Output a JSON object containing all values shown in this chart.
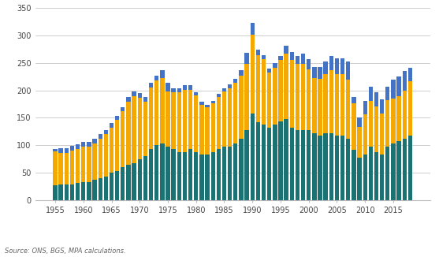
{
  "years": [
    1955,
    1956,
    1957,
    1958,
    1959,
    1960,
    1961,
    1962,
    1963,
    1964,
    1965,
    1966,
    1967,
    1968,
    1969,
    1970,
    1971,
    1972,
    1973,
    1974,
    1975,
    1976,
    1977,
    1978,
    1979,
    1980,
    1981,
    1982,
    1983,
    1984,
    1985,
    1986,
    1987,
    1988,
    1989,
    1990,
    1991,
    1992,
    1993,
    1994,
    1995,
    1996,
    1997,
    1998,
    1999,
    2000,
    2001,
    2002,
    2003,
    2004,
    2005,
    2006,
    2007,
    2008,
    2009,
    2010,
    2011,
    2012,
    2013,
    2014,
    2015,
    2016,
    2017,
    2018
  ],
  "crushed_rock": [
    27,
    29,
    29,
    29,
    32,
    33,
    34,
    37,
    40,
    44,
    50,
    54,
    60,
    65,
    68,
    75,
    80,
    93,
    100,
    104,
    98,
    93,
    88,
    88,
    93,
    88,
    84,
    84,
    88,
    93,
    98,
    98,
    103,
    112,
    128,
    158,
    142,
    138,
    132,
    138,
    143,
    148,
    132,
    128,
    128,
    128,
    122,
    118,
    122,
    122,
    118,
    118,
    112,
    92,
    78,
    83,
    98,
    88,
    83,
    98,
    103,
    108,
    112,
    118
  ],
  "sand_gravel": [
    62,
    58,
    58,
    62,
    62,
    65,
    64,
    67,
    72,
    76,
    82,
    92,
    102,
    115,
    122,
    112,
    100,
    112,
    118,
    118,
    100,
    103,
    108,
    113,
    108,
    103,
    90,
    85,
    88,
    95,
    100,
    105,
    110,
    115,
    120,
    143,
    122,
    118,
    100,
    103,
    112,
    118,
    123,
    120,
    120,
    110,
    100,
    103,
    108,
    115,
    112,
    112,
    108,
    84,
    55,
    73,
    83,
    83,
    75,
    84,
    82,
    82,
    88,
    98
  ],
  "recycled": [
    5,
    8,
    8,
    8,
    8,
    8,
    8,
    8,
    8,
    8,
    8,
    8,
    8,
    8,
    8,
    8,
    8,
    8,
    8,
    15,
    15,
    8,
    8,
    8,
    8,
    5,
    5,
    5,
    5,
    5,
    5,
    8,
    8,
    10,
    20,
    22,
    10,
    8,
    8,
    8,
    8,
    15,
    15,
    15,
    18,
    18,
    20,
    22,
    22,
    25,
    28,
    28,
    33,
    12,
    18,
    25,
    25,
    25,
    25,
    25,
    35,
    35,
    35,
    25
  ],
  "color_crushed_rock": "#1a7272",
  "color_sand_gravel": "#f5a800",
  "color_recycled": "#4472c4",
  "ylim": [
    0,
    350
  ],
  "yticks": [
    0,
    50,
    100,
    150,
    200,
    250,
    300,
    350
  ],
  "xticks": [
    1955,
    1960,
    1965,
    1970,
    1975,
    1980,
    1985,
    1990,
    1995,
    2000,
    2005,
    2010,
    2015
  ],
  "source_text": "Source: ONS, BGS, MPA calculations.",
  "background_color": "#ffffff",
  "grid_color": "#bbbbbb"
}
